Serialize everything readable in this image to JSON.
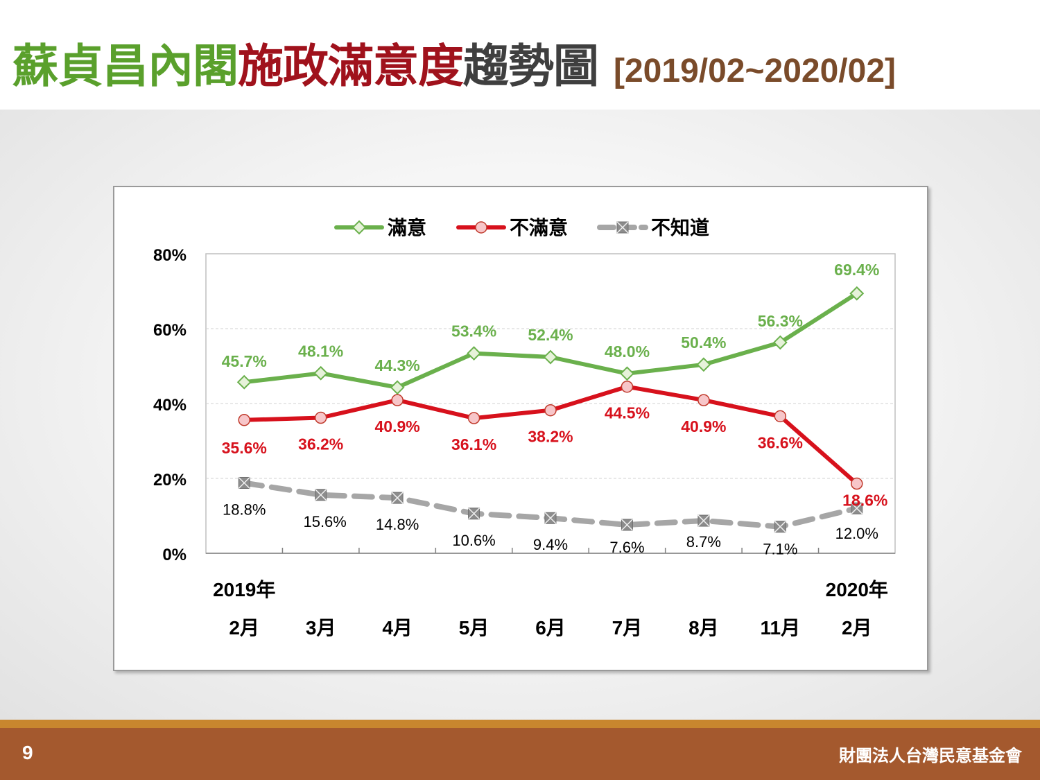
{
  "slide": {
    "title_part1": "蘇貞昌內閣",
    "title_part2": "施政滿意度",
    "title_part3": "趨勢圖",
    "title_range": "[2019/02~2020/02]",
    "page_number": "9",
    "organization": "財團法人台灣民意基金會",
    "colors": {
      "satisfied": "#6ab04c",
      "dissatisfied": "#d7111c",
      "unknown": "#a6a6a6",
      "footer": "#a4592e",
      "footer_accent": "#c8862e"
    }
  },
  "chart_data": {
    "type": "line",
    "categories": [
      "2月",
      "3月",
      "4月",
      "5月",
      "6月",
      "7月",
      "8月",
      "11月",
      "2月"
    ],
    "year_labels": {
      "first": "2019年",
      "last": "2020年"
    },
    "ylim": [
      0,
      80
    ],
    "yticks": [
      "0%",
      "20%",
      "40%",
      "60%",
      "80%"
    ],
    "grid": true,
    "legend_position": "top",
    "series": [
      {
        "name": "滿意",
        "marker": "diamond",
        "color": "#6ab04c",
        "values": [
          45.7,
          48.1,
          44.3,
          53.4,
          52.4,
          48.0,
          50.4,
          56.3,
          69.4
        ],
        "labels": [
          "45.7%",
          "48.1%",
          "44.3%",
          "53.4%",
          "52.4%",
          "48.0%",
          "50.4%",
          "56.3%",
          "69.4%"
        ]
      },
      {
        "name": "不滿意",
        "marker": "circle",
        "color": "#d7111c",
        "values": [
          35.6,
          36.2,
          40.9,
          36.1,
          38.2,
          44.5,
          40.9,
          36.6,
          18.6
        ],
        "labels": [
          "35.6%",
          "36.2%",
          "40.9%",
          "36.1%",
          "38.2%",
          "44.5%",
          "40.9%",
          "36.6%",
          "18.6%"
        ]
      },
      {
        "name": "不知道",
        "marker": "square-x",
        "color": "#a6a6a6",
        "values": [
          18.8,
          15.6,
          14.8,
          10.6,
          9.4,
          7.6,
          8.7,
          7.1,
          12.0
        ],
        "labels": [
          "18.8%",
          "15.6%",
          "14.8%",
          "10.6%",
          "9.4%",
          "7.6%",
          "8.7%",
          "7.1%",
          "12.0%"
        ]
      }
    ]
  }
}
